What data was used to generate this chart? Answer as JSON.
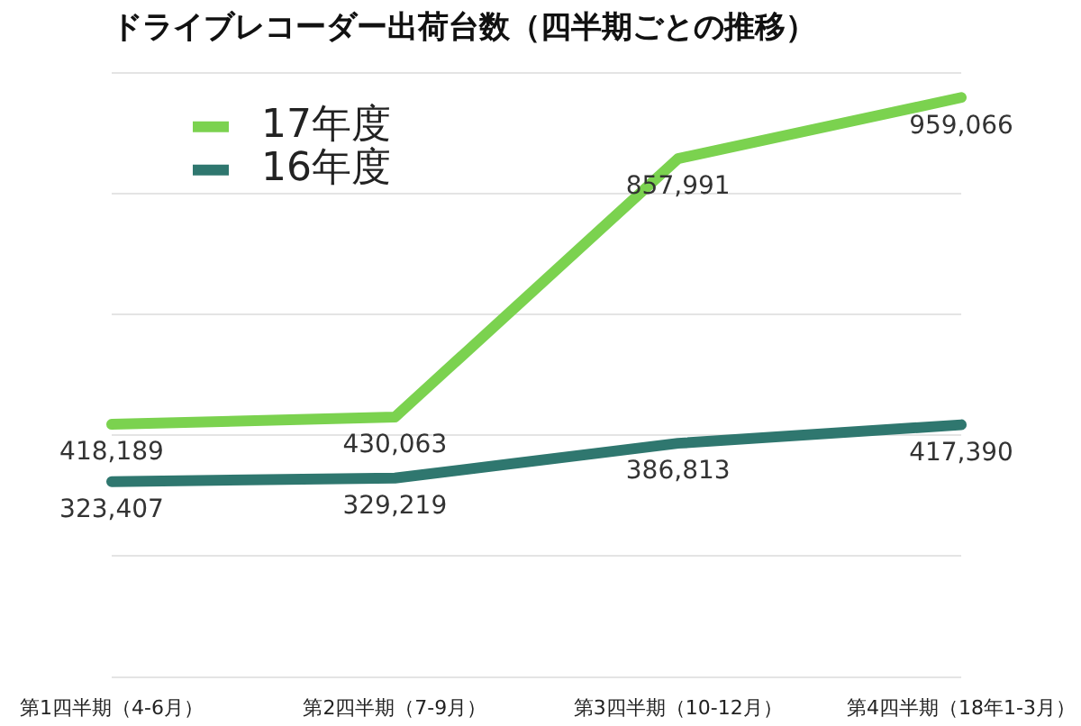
{
  "chart_data": {
    "type": "line",
    "title": "ドライブレコーダー出荷台数（四半期ごとの推移）",
    "categories": [
      "第1四半期（4-6月）",
      "第2四半期（7-9月）",
      "第3四半期（10-12月）",
      "第4四半期（18年1-3月）"
    ],
    "series": [
      {
        "name": "17年度",
        "color": "#7bd24f",
        "values": [
          418189,
          430063,
          857991,
          959066
        ],
        "value_labels": [
          "418,189",
          "430,063",
          "857,991",
          "959,066"
        ]
      },
      {
        "name": "16年度",
        "color": "#2f776f",
        "values": [
          323407,
          329219,
          386813,
          417390
        ],
        "value_labels": [
          "323,407",
          "329,219",
          "386,813",
          "417,390"
        ]
      }
    ],
    "grid": "y",
    "tick_labels": "x",
    "legend": "top left",
    "marker": "none",
    "line_style": "solid"
  }
}
